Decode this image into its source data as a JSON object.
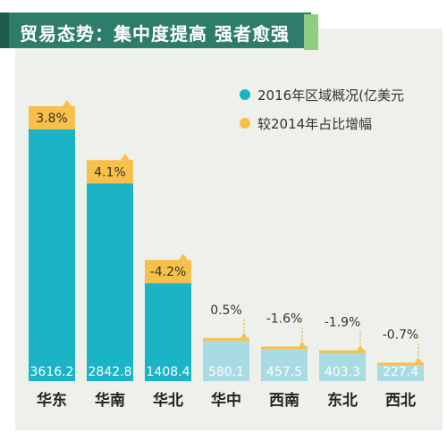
{
  "title": "贸易态势：集中度提高 强者愈强",
  "colors": {
    "title_band": "#2e7d6a",
    "title_dark": "#1f5b4c",
    "title_stripe": "#8fce80",
    "bar_dark": "#1bb3c6",
    "bar_light": "#a9dbe2",
    "growth": "#f6c04a",
    "background": "#eef0ec"
  },
  "legend": {
    "value_label": "2016年区域概况(亿美元",
    "growth_label": "较2014年占比增幅"
  },
  "chart_data": {
    "type": "bar",
    "categories": [
      "华东",
      "华南",
      "华北",
      "华中",
      "西南",
      "东北",
      "西北"
    ],
    "series": [
      {
        "name": "2016年区域概况(亿美元",
        "values": [
          3616.2,
          2842.8,
          1408.4,
          580.1,
          457.5,
          403.3,
          227.4
        ],
        "value_labels": [
          "3616.2",
          "2842.8",
          "1408.4",
          "580.1",
          "457.5",
          "403.3",
          "227.4"
        ]
      },
      {
        "name": "较2014年占比增幅",
        "values": [
          3.8,
          4.1,
          -4.2,
          0.5,
          -1.6,
          -1.9,
          -0.7
        ],
        "value_labels": [
          "3.8%",
          "4.1%",
          "-4.2%",
          "0.5%",
          "-1.6%",
          "-1.9%",
          "-0.7%"
        ]
      }
    ],
    "highlighted_categories": 3
  }
}
